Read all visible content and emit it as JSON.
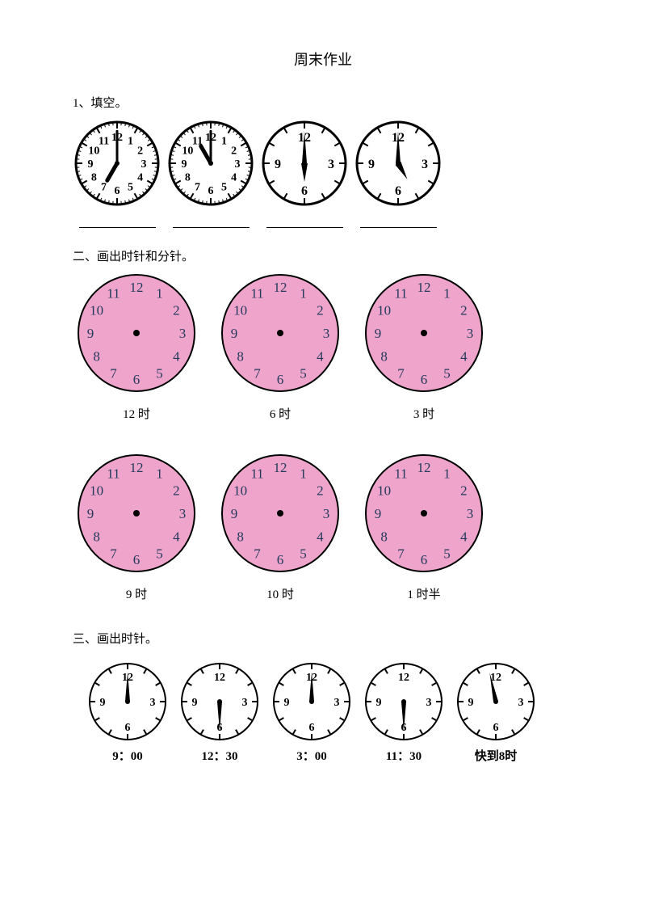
{
  "title": "周末作业",
  "q1": {
    "prompt": "1、填空。",
    "clocks": [
      {
        "type": "full12",
        "hour": 7,
        "minute": 0,
        "size": 110,
        "stroke": 3
      },
      {
        "type": "full12",
        "hour": 11,
        "minute": 0,
        "size": 110,
        "stroke": 3
      },
      {
        "type": "quad",
        "hour": 6,
        "minute": 0,
        "size": 110,
        "stroke": 3
      },
      {
        "type": "quad",
        "hour": 5,
        "minute": 0,
        "size": 110,
        "stroke": 3
      }
    ]
  },
  "q2": {
    "prompt": "二、画出时针和分针。",
    "clocks": [
      {
        "label": "12 时",
        "size": 150
      },
      {
        "label": "6 时",
        "size": 150
      },
      {
        "label": "3 时",
        "size": 150
      },
      {
        "label": "9 时",
        "size": 150
      },
      {
        "label": "10 时",
        "size": 150
      },
      {
        "label": "1 时半",
        "size": 150
      }
    ],
    "fill": "#efa4cc",
    "stroke": "#000000",
    "num_color": "#233a5c"
  },
  "q3": {
    "prompt": "三、画出时针。",
    "clocks": [
      {
        "minute": 0,
        "label": "9：00",
        "size": 100
      },
      {
        "minute": 30,
        "label": "12：30",
        "size": 100
      },
      {
        "minute": 0,
        "label": "3：00",
        "size": 100
      },
      {
        "minute": 30,
        "label": "11：30",
        "size": 100
      },
      {
        "minute": 58,
        "label": "快到8时",
        "size": 100
      }
    ]
  },
  "colors": {
    "black": "#000000",
    "white": "#ffffff"
  }
}
